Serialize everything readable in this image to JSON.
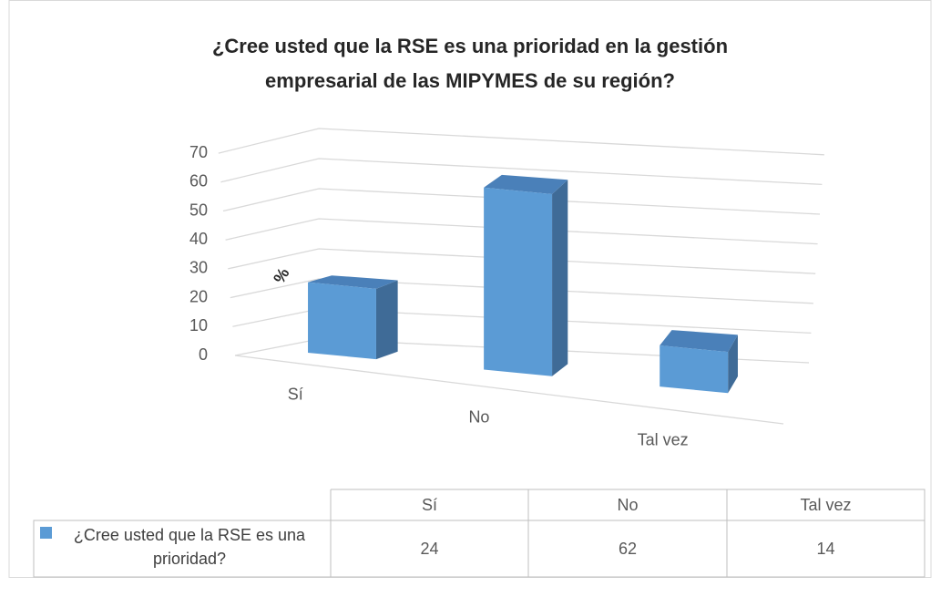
{
  "chart_data": {
    "type": "bar3d",
    "title": "¿Cree usted que la RSE es una prioridad en la gestión empresarial de las MIPYMES de su región?",
    "y_label": "%",
    "categories": [
      "Sí",
      "No",
      "Tal vez"
    ],
    "series": [
      {
        "name": "¿Cree usted que la RSE es una prioridad?",
        "color": "#5b9bd5",
        "values": [
          24,
          62,
          14
        ]
      }
    ],
    "ylim": [
      0,
      70
    ],
    "yticks": [
      0,
      10,
      20,
      30,
      40,
      50,
      60,
      70
    ],
    "grid": true,
    "data_table": true
  }
}
